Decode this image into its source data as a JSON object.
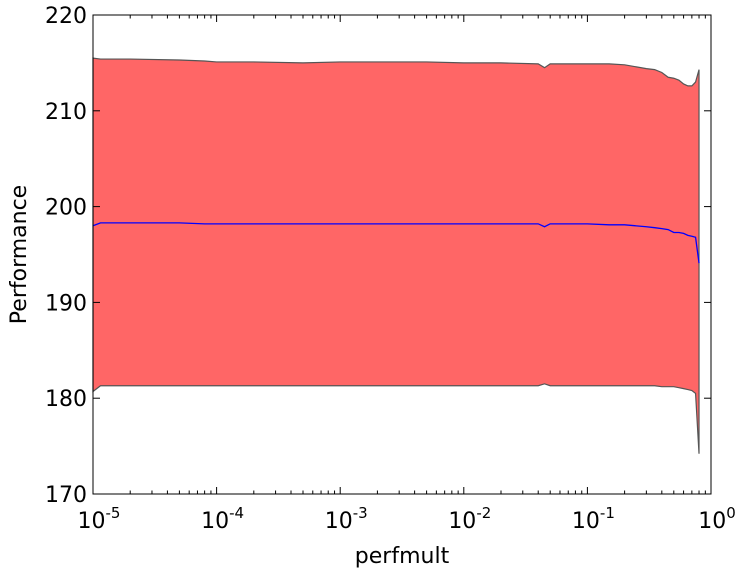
{
  "chart_data": {
    "type": "area",
    "xlabel": "perfmult",
    "ylabel": "Performance",
    "xscale": "log",
    "xlim": [
      1e-05,
      1
    ],
    "ylim": [
      170,
      220
    ],
    "x_ticks": [
      {
        "value": 1e-05,
        "base": "10",
        "exp": "-5"
      },
      {
        "value": 0.0001,
        "base": "10",
        "exp": "-4"
      },
      {
        "value": 0.001,
        "base": "10",
        "exp": "-3"
      },
      {
        "value": 0.01,
        "base": "10",
        "exp": "-2"
      },
      {
        "value": 0.1,
        "base": "10",
        "exp": "-1"
      },
      {
        "value": 1,
        "base": "10",
        "exp": "0"
      }
    ],
    "y_ticks": [
      "170",
      "180",
      "190",
      "200",
      "210",
      "220"
    ],
    "grid": false,
    "colors": {
      "band": "#ff6666",
      "band_edge": "#555555",
      "mean_line": "#0000ff"
    },
    "x": [
      1e-05,
      1.15e-05,
      2e-05,
      5e-05,
      8e-05,
      0.0001,
      0.0002,
      0.0005,
      0.001,
      0.002,
      0.005,
      0.01,
      0.02,
      0.04,
      0.045,
      0.05,
      0.1,
      0.15,
      0.2,
      0.3,
      0.35,
      0.4,
      0.45,
      0.5,
      0.55,
      0.6,
      0.65,
      0.7,
      0.75,
      0.8
    ],
    "series": [
      {
        "values": [
          198.0,
          198.3,
          198.3,
          198.3,
          198.2,
          198.2,
          198.2,
          198.2,
          198.2,
          198.2,
          198.2,
          198.2,
          198.2,
          198.2,
          197.9,
          198.2,
          198.2,
          198.1,
          198.1,
          197.9,
          197.8,
          197.7,
          197.6,
          197.3,
          197.3,
          197.2,
          197.0,
          196.9,
          196.8,
          194.1
        ]
      },
      {
        "values": [
          215.5,
          215.4,
          215.4,
          215.3,
          215.2,
          215.1,
          215.1,
          215.0,
          215.1,
          215.1,
          215.1,
          215.0,
          215.0,
          214.9,
          214.5,
          214.9,
          214.9,
          214.9,
          214.8,
          214.4,
          214.3,
          214.0,
          213.5,
          213.4,
          213.2,
          212.8,
          212.6,
          212.6,
          213.0,
          214.3
        ]
      },
      {
        "values": [
          180.7,
          181.3,
          181.3,
          181.3,
          181.3,
          181.3,
          181.3,
          181.3,
          181.3,
          181.3,
          181.3,
          181.3,
          181.3,
          181.3,
          181.5,
          181.3,
          181.3,
          181.3,
          181.3,
          181.3,
          181.3,
          181.2,
          181.2,
          181.2,
          181.1,
          181.0,
          180.9,
          180.8,
          180.5,
          174.2
        ]
      }
    ]
  }
}
